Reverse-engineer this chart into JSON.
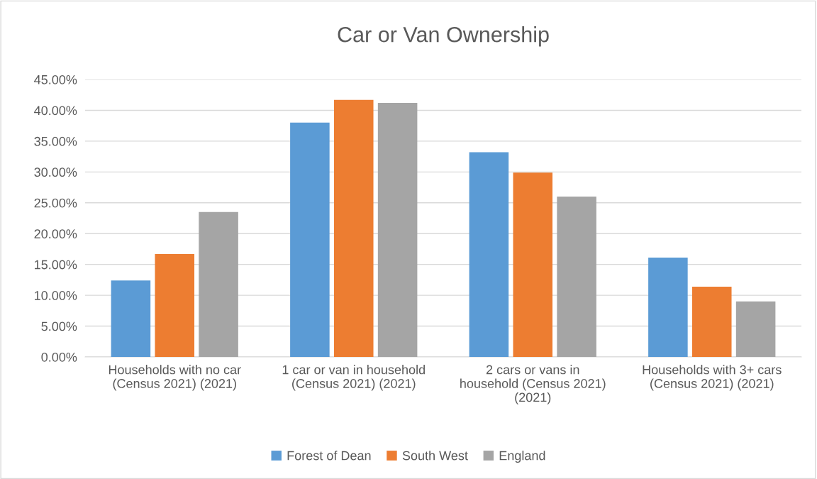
{
  "chart_data": {
    "type": "bar",
    "title": "Car or Van Ownership",
    "categories": [
      "Households with no car\n(Census 2021) (2021)",
      "1 car or van in household\n(Census 2021) (2021)",
      "2 cars or vans in\nhousehold (Census 2021)\n(2021)",
      "Households with 3+ cars\n(Census 2021) (2021)"
    ],
    "series": [
      {
        "name": "Forest of Dean",
        "color": "#5b9bd5",
        "values": [
          12.4,
          38.0,
          33.2,
          16.1
        ]
      },
      {
        "name": "South West",
        "color": "#ed7d31",
        "values": [
          16.7,
          41.7,
          29.9,
          11.4
        ]
      },
      {
        "name": "England",
        "color": "#a5a5a5",
        "values": [
          23.5,
          41.2,
          26.0,
          9.0
        ]
      }
    ],
    "ylim": [
      0,
      45
    ],
    "yticks": [
      {
        "value": 0,
        "label": "0.00%"
      },
      {
        "value": 5,
        "label": "5.00%"
      },
      {
        "value": 10,
        "label": "10.00%"
      },
      {
        "value": 15,
        "label": "15.00%"
      },
      {
        "value": 20,
        "label": "20.00%"
      },
      {
        "value": 25,
        "label": "25.00%"
      },
      {
        "value": 30,
        "label": "30.00%"
      },
      {
        "value": 35,
        "label": "35.00%"
      },
      {
        "value": 40,
        "label": "40.00%"
      },
      {
        "value": 45,
        "label": "45.00%"
      }
    ],
    "grid": "y",
    "legend": "bottom"
  }
}
